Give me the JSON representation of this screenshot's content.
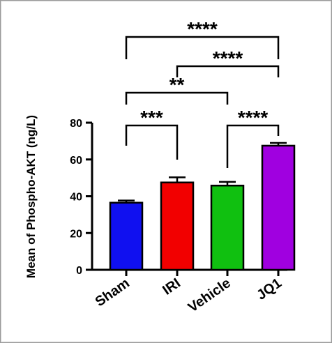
{
  "chart_data": {
    "type": "bar",
    "title": "",
    "xlabel": "",
    "ylabel": "Mean of Phospho-AKT (ng/L)",
    "ylim": [
      0,
      80
    ],
    "yticks": [
      0,
      20,
      40,
      60,
      80
    ],
    "grid": false,
    "categories": [
      "Sham",
      "IRI",
      "Vehicle",
      "JQ1"
    ],
    "values": [
      36.5,
      47.5,
      45.8,
      67.5
    ],
    "errors": [
      1.2,
      2.8,
      2.0,
      1.5
    ],
    "colors": [
      "#1010f0",
      "#f20000",
      "#10c010",
      "#a000e0"
    ],
    "significance": [
      {
        "from": "Sham",
        "to": "IRI",
        "label": "***"
      },
      {
        "from": "Vehicle",
        "to": "JQ1",
        "label": "****"
      },
      {
        "from": "Sham",
        "to": "Vehicle",
        "label": "**"
      },
      {
        "from": "IRI",
        "to": "JQ1",
        "label": "****"
      },
      {
        "from": "Sham",
        "to": "JQ1",
        "label": "****"
      }
    ]
  }
}
